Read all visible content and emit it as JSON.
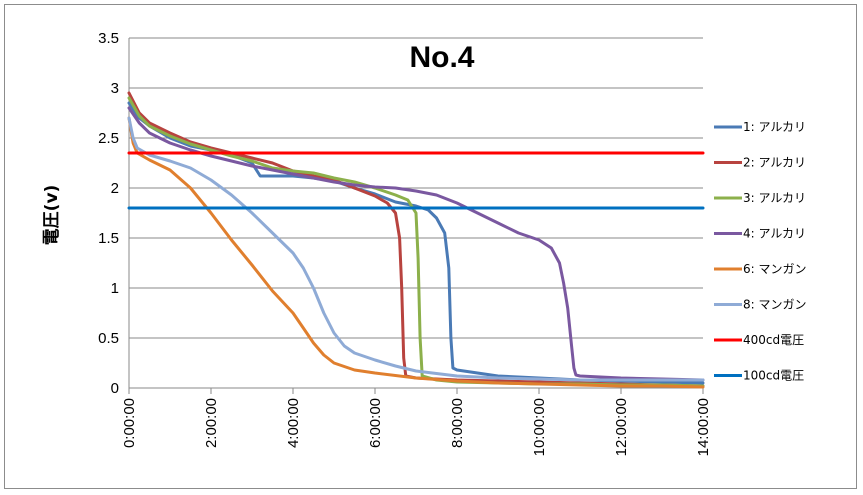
{
  "chart_data": {
    "type": "line",
    "title": "No.4",
    "xlabel": "",
    "ylabel": "電圧(v)",
    "ylim": [
      0,
      3.5
    ],
    "y_ticks": [
      "0",
      "0.5",
      "1",
      "1.5",
      "2",
      "2.5",
      "3",
      "3.5"
    ],
    "y_tick_values": [
      0,
      0.5,
      1,
      1.5,
      2,
      2.5,
      3,
      3.5
    ],
    "xlim_hours": [
      0,
      14
    ],
    "x_ticks": [
      "0:00:00",
      "2:00:00",
      "4:00:00",
      "6:00:00",
      "8:00:00",
      "10:00:00",
      "12:00:00",
      "14:00:00"
    ],
    "x_tick_values": [
      0,
      2,
      4,
      6,
      8,
      10,
      12,
      14
    ],
    "grid": "horizontal",
    "legend_position": "right",
    "series": [
      {
        "name": "1: アルカリ",
        "color": "#4a7ab5",
        "x": [
          0,
          0.25,
          0.5,
          1,
          1.5,
          2,
          2.5,
          3,
          3.2,
          3.5,
          4,
          4.5,
          5,
          5.5,
          6,
          6.5,
          7,
          7.3,
          7.5,
          7.7,
          7.8,
          7.85,
          7.9,
          8.0,
          8.5,
          9,
          10,
          11,
          12,
          13,
          14
        ],
        "y": [
          2.85,
          2.7,
          2.62,
          2.5,
          2.42,
          2.38,
          2.33,
          2.25,
          2.12,
          2.12,
          2.12,
          2.1,
          2.07,
          2.0,
          1.94,
          1.86,
          1.82,
          1.78,
          1.7,
          1.55,
          1.2,
          0.5,
          0.2,
          0.18,
          0.15,
          0.12,
          0.1,
          0.08,
          0.07,
          0.06,
          0.05
        ]
      },
      {
        "name": "2: アルカリ",
        "color": "#b8433f",
        "x": [
          0,
          0.25,
          0.5,
          1,
          1.5,
          2,
          2.5,
          3,
          3.5,
          4,
          4.5,
          5,
          5.5,
          6,
          6.3,
          6.5,
          6.6,
          6.65,
          6.7,
          6.75,
          7,
          8,
          9,
          10,
          11,
          12,
          13,
          14
        ],
        "y": [
          2.95,
          2.75,
          2.65,
          2.55,
          2.46,
          2.4,
          2.35,
          2.3,
          2.25,
          2.17,
          2.12,
          2.08,
          2.0,
          1.92,
          1.85,
          1.75,
          1.5,
          1.0,
          0.3,
          0.12,
          0.1,
          0.08,
          0.07,
          0.06,
          0.05,
          0.04,
          0.03,
          0.02
        ]
      },
      {
        "name": "3: アルカリ",
        "color": "#8cb04b",
        "x": [
          0,
          0.25,
          0.5,
          1,
          1.5,
          2,
          2.5,
          3,
          3.5,
          4,
          4.5,
          5,
          5.5,
          6,
          6.5,
          6.8,
          7.0,
          7.05,
          7.1,
          7.15,
          7.5,
          8,
          9,
          10,
          11,
          12,
          13,
          14
        ],
        "y": [
          2.9,
          2.72,
          2.62,
          2.52,
          2.44,
          2.38,
          2.32,
          2.27,
          2.2,
          2.17,
          2.15,
          2.1,
          2.06,
          2.0,
          1.93,
          1.88,
          1.75,
          1.3,
          0.5,
          0.12,
          0.08,
          0.06,
          0.05,
          0.04,
          0.04,
          0.03,
          0.03,
          0.02
        ]
      },
      {
        "name": "4: アルカリ",
        "color": "#7a58a0",
        "x": [
          0,
          0.25,
          0.5,
          1,
          1.5,
          2,
          2.5,
          3,
          3.5,
          4,
          4.5,
          5,
          5.5,
          6,
          6.5,
          7,
          7.5,
          8,
          8.5,
          9,
          9.5,
          10,
          10.3,
          10.5,
          10.6,
          10.7,
          10.8,
          10.85,
          10.9,
          11,
          12,
          13,
          14
        ],
        "y": [
          2.8,
          2.65,
          2.55,
          2.45,
          2.38,
          2.32,
          2.27,
          2.22,
          2.18,
          2.14,
          2.1,
          2.06,
          2.03,
          2.01,
          2.0,
          1.97,
          1.93,
          1.85,
          1.75,
          1.65,
          1.55,
          1.48,
          1.4,
          1.25,
          1.05,
          0.8,
          0.4,
          0.2,
          0.13,
          0.12,
          0.1,
          0.09,
          0.08
        ]
      },
      {
        "name": "6: マンガン",
        "color": "#e07f2e",
        "x": [
          0,
          0.1,
          0.2,
          0.5,
          1,
          1.5,
          2,
          2.5,
          3,
          3.5,
          4,
          4.25,
          4.5,
          4.75,
          5,
          5.5,
          6,
          7,
          8,
          9,
          10,
          11,
          12,
          13,
          14
        ],
        "y": [
          2.7,
          2.45,
          2.35,
          2.28,
          2.18,
          2.0,
          1.75,
          1.48,
          1.23,
          0.97,
          0.75,
          0.6,
          0.45,
          0.33,
          0.25,
          0.18,
          0.15,
          0.1,
          0.07,
          0.05,
          0.04,
          0.03,
          0.02,
          0.02,
          0.01
        ]
      },
      {
        "name": "8: マンガン",
        "color": "#8fabd6",
        "x": [
          0,
          0.1,
          0.2,
          0.5,
          1,
          1.5,
          2,
          2.5,
          3,
          3.5,
          4,
          4.25,
          4.5,
          4.75,
          5,
          5.25,
          5.5,
          6,
          6.5,
          7,
          8,
          9,
          10,
          11,
          12,
          13,
          14
        ],
        "y": [
          2.7,
          2.5,
          2.4,
          2.33,
          2.27,
          2.2,
          2.08,
          1.93,
          1.75,
          1.55,
          1.35,
          1.2,
          1.0,
          0.75,
          0.55,
          0.42,
          0.35,
          0.28,
          0.22,
          0.17,
          0.12,
          0.1,
          0.09,
          0.08,
          0.08,
          0.08,
          0.08
        ]
      },
      {
        "name": "400cd電圧",
        "color": "#ff0000",
        "x": [
          0,
          14
        ],
        "y": [
          2.35,
          2.35
        ]
      },
      {
        "name": "100cd電圧",
        "color": "#0070c0",
        "x": [
          0,
          14
        ],
        "y": [
          1.8,
          1.8
        ]
      }
    ]
  }
}
